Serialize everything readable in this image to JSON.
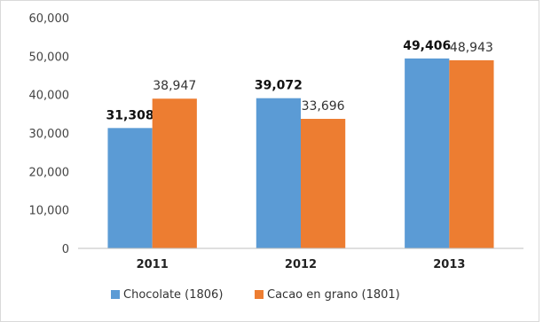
{
  "chart_data": {
    "type": "bar",
    "categories": [
      "2011",
      "2012",
      "2013"
    ],
    "series": [
      {
        "name": "Chocolate (1806)",
        "values": [
          31308,
          39072,
          49406
        ],
        "labels": [
          "31,308",
          "39,072",
          "49,406"
        ],
        "color": "#5b9bd5",
        "label_bold": true
      },
      {
        "name": "Cacao en grano (1801)",
        "values": [
          38947,
          33696,
          48943
        ],
        "labels": [
          "38,947",
          "33,696",
          "48,943"
        ],
        "color": "#ed7d31",
        "label_bold": false
      }
    ],
    "yticks": [
      "0",
      "10,000",
      "20,000",
      "30,000",
      "40,000",
      "50,000",
      "60,000"
    ],
    "ylim": [
      0,
      60000
    ],
    "grid": false,
    "legend_position": "bottom"
  }
}
